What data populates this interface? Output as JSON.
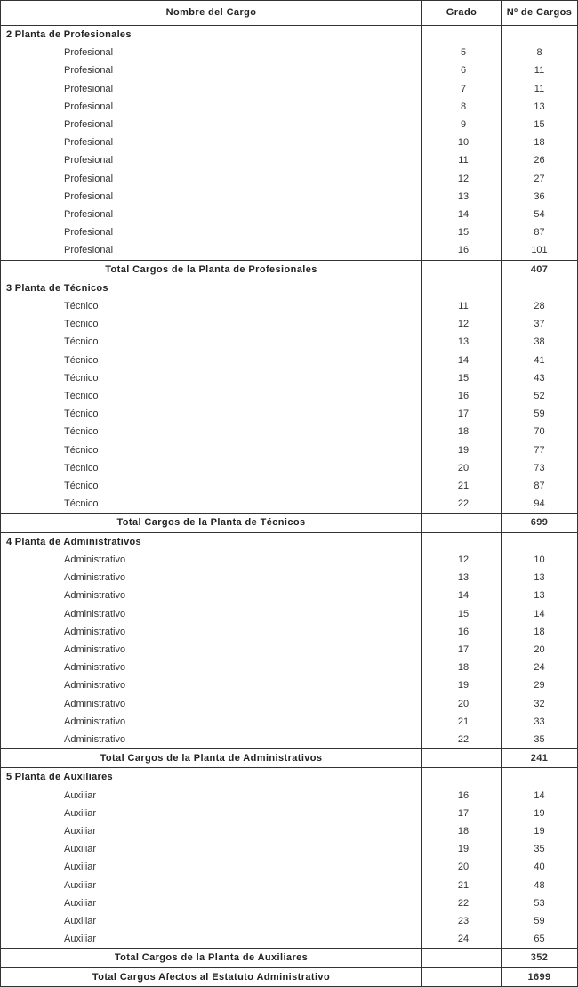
{
  "header": {
    "name": "Nombre del Cargo",
    "grado": "Grado",
    "cargos": "Nº de Cargos"
  },
  "sections": [
    {
      "title": "2  Planta de Profesionales",
      "rows": [
        [
          "Profesional",
          "5",
          "8"
        ],
        [
          "Profesional",
          "6",
          "11"
        ],
        [
          "Profesional",
          "7",
          "11"
        ],
        [
          "Profesional",
          "8",
          "13"
        ],
        [
          "Profesional",
          "9",
          "15"
        ],
        [
          "Profesional",
          "10",
          "18"
        ],
        [
          "Profesional",
          "11",
          "26"
        ],
        [
          "Profesional",
          "12",
          "27"
        ],
        [
          "Profesional",
          "13",
          "36"
        ],
        [
          "Profesional",
          "14",
          "54"
        ],
        [
          "Profesional",
          "15",
          "87"
        ],
        [
          "Profesional",
          "16",
          "101"
        ]
      ],
      "total_label": "Total Cargos de la Planta de Profesionales",
      "total": "407"
    },
    {
      "title": "3  Planta de Técnicos",
      "rows": [
        [
          "Técnico",
          "11",
          "28"
        ],
        [
          "Técnico",
          "12",
          "37"
        ],
        [
          "Técnico",
          "13",
          "38"
        ],
        [
          "Técnico",
          "14",
          "41"
        ],
        [
          "Técnico",
          "15",
          "43"
        ],
        [
          "Técnico",
          "16",
          "52"
        ],
        [
          "Técnico",
          "17",
          "59"
        ],
        [
          "Técnico",
          "18",
          "70"
        ],
        [
          "Técnico",
          "19",
          "77"
        ],
        [
          "Técnico",
          "20",
          "73"
        ],
        [
          "Técnico",
          "21",
          "87"
        ],
        [
          "Técnico",
          "22",
          "94"
        ]
      ],
      "total_label": "Total Cargos de la Planta de Técnicos",
      "total": "699"
    },
    {
      "title": "4  Planta de Administrativos",
      "rows": [
        [
          "Administrativo",
          "12",
          "10"
        ],
        [
          "Administrativo",
          "13",
          "13"
        ],
        [
          "Administrativo",
          "14",
          "13"
        ],
        [
          "Administrativo",
          "15",
          "14"
        ],
        [
          "Administrativo",
          "16",
          "18"
        ],
        [
          "Administrativo",
          "17",
          "20"
        ],
        [
          "Administrativo",
          "18",
          "24"
        ],
        [
          "Administrativo",
          "19",
          "29"
        ],
        [
          "Administrativo",
          "20",
          "32"
        ],
        [
          "Administrativo",
          "21",
          "33"
        ],
        [
          "Administrativo",
          "22",
          "35"
        ]
      ],
      "total_label": "Total Cargos de la Planta de Administrativos",
      "total": "241"
    },
    {
      "title": "5  Planta de Auxiliares",
      "rows": [
        [
          "Auxiliar",
          "16",
          "14"
        ],
        [
          "Auxiliar",
          "17",
          "19"
        ],
        [
          "Auxiliar",
          "18",
          "19"
        ],
        [
          "Auxiliar",
          "19",
          "35"
        ],
        [
          "Auxiliar",
          "20",
          "40"
        ],
        [
          "Auxiliar",
          "21",
          "48"
        ],
        [
          "Auxiliar",
          "22",
          "53"
        ],
        [
          "Auxiliar",
          "23",
          "59"
        ],
        [
          "Auxiliar",
          "24",
          "65"
        ]
      ],
      "total_label": "Total Cargos de la Planta de Auxiliares",
      "total": "352"
    }
  ],
  "grand_total": {
    "label": "Total Cargos Afectos al Estatuto Administrativo",
    "value": "1699"
  }
}
